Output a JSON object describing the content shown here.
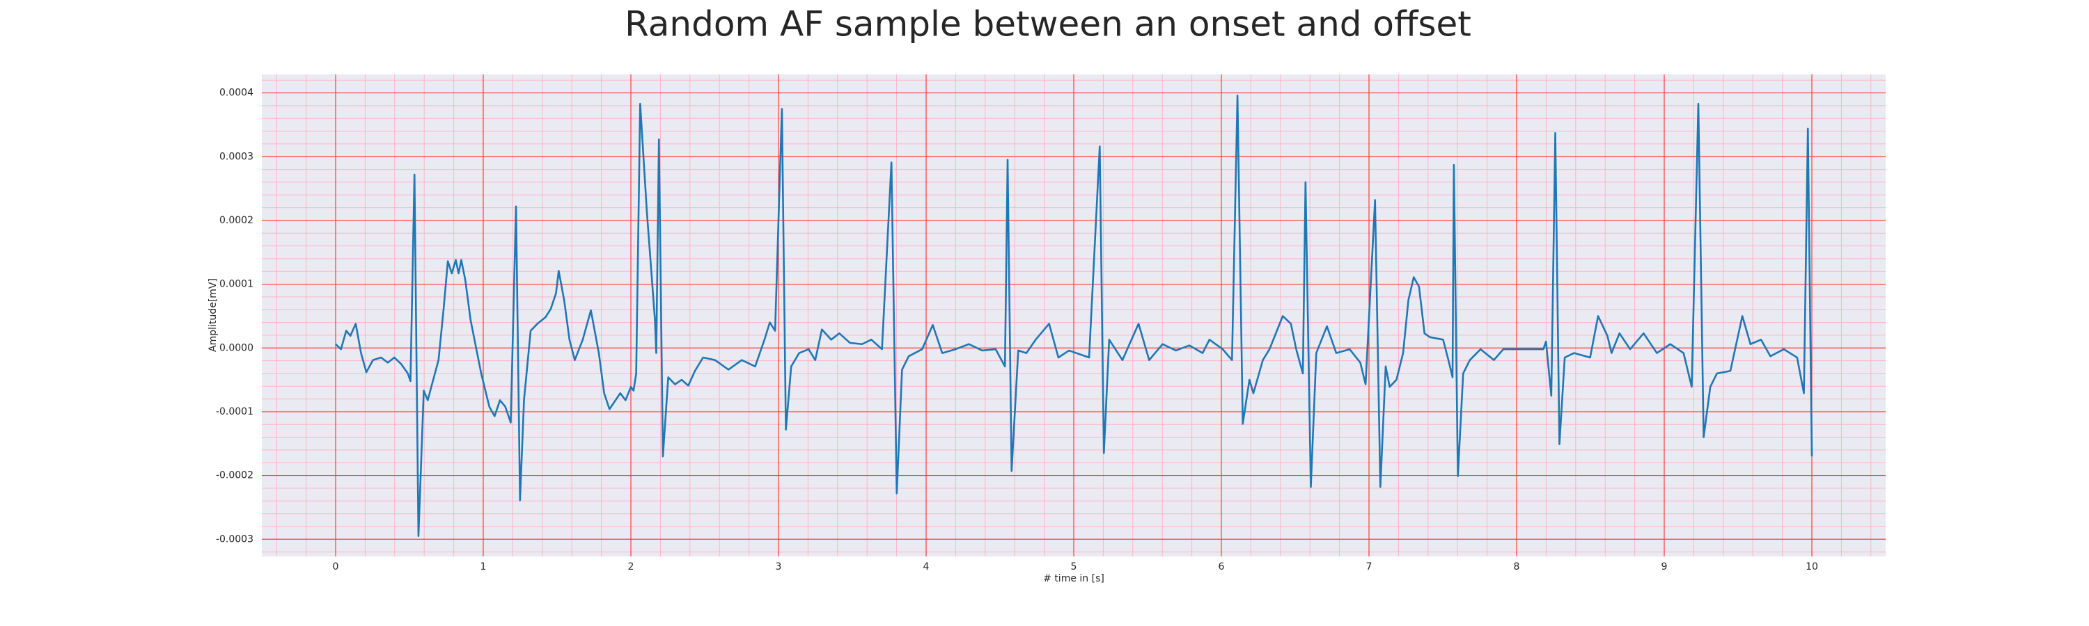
{
  "chart_data": {
    "type": "line",
    "title": "Random AF sample between an onset and offset",
    "xlabel": "# time in [s]",
    "ylabel": "Amplitude[mV]",
    "xlim": [
      -0.5,
      10.5
    ],
    "ylim": [
      -0.000327,
      0.000429
    ],
    "xticks": [
      0,
      1,
      2,
      3,
      4,
      5,
      6,
      7,
      8,
      9,
      10
    ],
    "yticks": [
      -0.0003,
      -0.0002,
      -0.0001,
      {
        "value": 0,
        "label": "0.0000"
      },
      0.0001,
      0.0002,
      0.0003,
      0.0004
    ],
    "grid": true,
    "grid_color": "#ff3b3b",
    "minor_grid": true,
    "minor_grid_color": "#ffb3c6",
    "background": "#eaeaf2",
    "x": [
      0,
      0.036,
      0.072,
      0.1,
      0.136,
      0.172,
      0.208,
      0.253,
      0.308,
      0.353,
      0.398,
      0.443,
      0.489,
      0.507,
      0.534,
      0.561,
      0.597,
      0.624,
      0.661,
      0.697,
      0.733,
      0.76,
      0.787,
      0.814,
      0.833,
      0.851,
      0.878,
      0.914,
      0.986,
      1.041,
      1.077,
      1.113,
      1.149,
      1.186,
      1.222,
      1.249,
      1.276,
      1.321,
      1.367,
      1.421,
      1.457,
      1.493,
      1.511,
      1.548,
      1.584,
      1.62,
      1.674,
      1.729,
      1.783,
      1.819,
      1.855,
      1.928,
      1.964,
      2.0,
      2.018,
      2.036,
      2.063,
      2.109,
      2.136,
      2.163,
      2.172,
      2.19,
      2.217,
      2.253,
      2.299,
      2.344,
      2.389,
      2.434,
      2.489,
      2.57,
      2.661,
      2.751,
      2.842,
      2.905,
      2.941,
      2.977,
      3.023,
      3.05,
      3.086,
      3.14,
      3.204,
      3.249,
      3.294,
      3.357,
      3.412,
      3.484,
      3.566,
      3.629,
      3.701,
      3.765,
      3.801,
      3.837,
      3.882,
      3.973,
      4.045,
      4.109,
      4.199,
      4.29,
      4.38,
      4.471,
      4.534,
      4.552,
      4.579,
      4.624,
      4.679,
      4.742,
      4.833,
      4.896,
      4.968,
      5.104,
      5.176,
      5.204,
      5.24,
      5.33,
      5.439,
      5.511,
      5.602,
      5.692,
      5.783,
      5.873,
      5.919,
      6.009,
      6.072,
      6.109,
      6.145,
      6.19,
      6.217,
      6.281,
      6.326,
      6.416,
      6.471,
      6.507,
      6.552,
      6.57,
      6.606,
      6.643,
      6.715,
      6.778,
      6.869,
      6.941,
      6.977,
      7.041,
      7.077,
      7.113,
      7.14,
      7.186,
      7.231,
      7.267,
      7.303,
      7.339,
      7.376,
      7.412,
      7.502,
      7.538,
      7.566,
      7.575,
      7.602,
      7.638,
      7.683,
      7.756,
      7.846,
      7.91,
      8.045,
      8.181,
      8.199,
      8.235,
      8.262,
      8.29,
      8.326,
      8.389,
      8.498,
      8.552,
      8.615,
      8.643,
      8.697,
      8.769,
      8.86,
      8.95,
      9.041,
      9.131,
      9.186,
      9.231,
      9.267,
      9.312,
      9.357,
      9.448,
      9.529,
      9.584,
      9.656,
      9.719,
      9.81,
      9.9,
      9.946,
      9.973,
      10.0
    ],
    "series": [
      {
        "color": "#1f77b4",
        "values": [
          6e-06,
          -2e-06,
          2.7e-05,
          1.9e-05,
          3.8e-05,
          -8e-06,
          -3.8e-05,
          -1.9e-05,
          -1.5e-05,
          -2.3e-05,
          -1.5e-05,
          -2.5e-05,
          -4e-05,
          -5.2e-05,
          0.000272,
          -0.000295,
          -6.7e-05,
          -8.2e-05,
          -5e-05,
          -1.9e-05,
          6.5e-05,
          0.000136,
          0.000117,
          0.000138,
          0.000117,
          0.000138,
          0.000107,
          4.4e-05,
          -4e-05,
          -9.2e-05,
          -0.000107,
          -8.2e-05,
          -9.2e-05,
          -0.000117,
          0.000222,
          -0.000239,
          -8.2e-05,
          2.7e-05,
          3.8e-05,
          4.8e-05,
          6.1e-05,
          8.6e-05,
          0.000121,
          7.5e-05,
          1.3e-05,
          -1.9e-05,
          1.3e-05,
          5.9e-05,
          -8e-06,
          -7.1e-05,
          -9.6e-05,
          -7.1e-05,
          -8.2e-05,
          -6.1e-05,
          -6.7e-05,
          -4e-05,
          0.000383,
          0.000211,
          0.000128,
          4.4e-05,
          -8e-06,
          0.000327,
          -0.00017,
          -4.6e-05,
          -5.7e-05,
          -5e-05,
          -5.9e-05,
          -3.6e-05,
          -1.5e-05,
          -1.9e-05,
          -3.4e-05,
          -1.9e-05,
          -2.9e-05,
          1.3e-05,
          4e-05,
          2.7e-05,
          0.000375,
          -0.000128,
          -2.9e-05,
          -8e-06,
          -2e-06,
          -1.9e-05,
          2.9e-05,
          1.3e-05,
          2.3e-05,
          8e-06,
          6e-06,
          1.3e-05,
          -2e-06,
          0.000291,
          -0.000228,
          -3.4e-05,
          -1.3e-05,
          -2e-06,
          3.6e-05,
          -8e-06,
          -2e-06,
          6e-06,
          -4e-06,
          -2e-06,
          -2.9e-05,
          0.000295,
          -0.000193,
          -4e-06,
          -8e-06,
          1.3e-05,
          3.8e-05,
          -1.5e-05,
          -4e-06,
          -1.5e-05,
          0.000316,
          -0.000165,
          1.3e-05,
          -1.9e-05,
          3.8e-05,
          -1.9e-05,
          6e-06,
          -4e-06,
          4e-06,
          -8e-06,
          1.3e-05,
          -2e-06,
          -1.9e-05,
          0.000396,
          -0.000119,
          -5e-05,
          -7.1e-05,
          -1.9e-05,
          -2e-06,
          5e-05,
          3.8e-05,
          -2e-06,
          -4e-05,
          0.00026,
          -0.000218,
          -8e-06,
          3.4e-05,
          -8e-06,
          -2e-06,
          -2.3e-05,
          -5.7e-05,
          0.000232,
          -0.000218,
          -2.9e-05,
          -6.1e-05,
          -5e-05,
          -8e-06,
          7.5e-05,
          0.000111,
          9.6e-05,
          2.3e-05,
          1.7e-05,
          1.3e-05,
          -1.9e-05,
          -4.6e-05,
          0.000287,
          -0.000201,
          -4e-05,
          -1.9e-05,
          -2e-06,
          -1.9e-05,
          -2e-06,
          -2e-06,
          -2e-06,
          1e-05,
          -7.5e-05,
          0.000337,
          -0.000151,
          -1.5e-05,
          -8e-06,
          -1.5e-05,
          5e-05,
          1.9e-05,
          -8e-06,
          2.3e-05,
          -2e-06,
          2.3e-05,
          -8e-06,
          6e-06,
          -8e-06,
          -6.1e-05,
          0.000383,
          -0.00014,
          -6.1e-05,
          -4e-05,
          -3.6e-05,
          5e-05,
          6e-06,
          1.3e-05,
          -1.3e-05,
          -2e-06,
          -1.5e-05,
          -7.1e-05,
          0.000344,
          -0.00017
        ]
      }
    ]
  }
}
